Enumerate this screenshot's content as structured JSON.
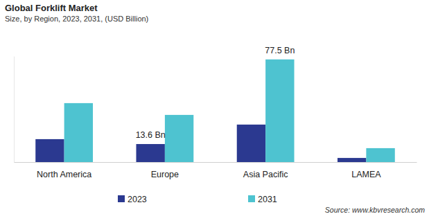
{
  "chart_data": {
    "type": "bar",
    "title": "Global Forklift Market",
    "subtitle": "Size, by Region, 2023, 2031, (USD Billion)",
    "source": "Source: www.kbvresearch.com",
    "categories": [
      "North America",
      "Europe",
      "Asia Pacific",
      "LAMEA"
    ],
    "series": [
      {
        "name": "2023",
        "color": "#2b3990",
        "values": [
          17.3,
          13.6,
          28.3,
          3.1
        ],
        "value_labels": [
          null,
          "13.6 Bn",
          null,
          null
        ]
      },
      {
        "name": "2031",
        "color": "#4ec3d0",
        "values": [
          44.5,
          35.6,
          77.5,
          10.5
        ],
        "value_labels": [
          null,
          null,
          "77.5 Bn",
          null
        ]
      }
    ],
    "ylim": [
      0,
      80
    ],
    "tick_labels": "x",
    "data_labels": true,
    "legend": "bottom",
    "grid": false
  }
}
